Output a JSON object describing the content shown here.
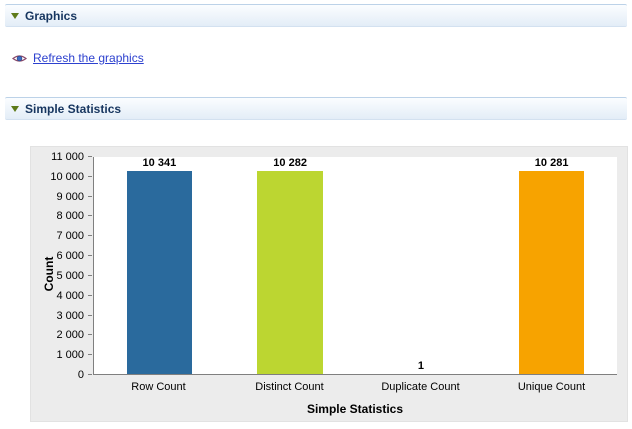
{
  "sections": {
    "graphics": {
      "title": "Graphics"
    },
    "simple_statistics": {
      "title": "Simple Statistics"
    }
  },
  "actions": {
    "refresh_link": "Refresh the graphics"
  },
  "colors": {
    "row_count_bar": "#2a6a9d",
    "distinct_count_bar": "#bcd631",
    "duplicate_count_bar": "#bcd631",
    "unique_count_bar": "#f7a300",
    "link": "#2d41cf"
  },
  "chart_data": {
    "type": "bar",
    "title": "",
    "categories": [
      "Row Count",
      "Distinct Count",
      "Duplicate Count",
      "Unique Count"
    ],
    "values": [
      10341,
      10282,
      1,
      10281
    ],
    "value_labels": [
      "10 341",
      "10 282",
      "1",
      "10 281"
    ],
    "bar_colors": [
      "#2a6a9d",
      "#bcd631",
      "#bcd631",
      "#f7a300"
    ],
    "xlabel": "Simple Statistics",
    "ylabel": "Count",
    "ylim": [
      0,
      11000
    ],
    "yticks": [
      0,
      1000,
      2000,
      3000,
      4000,
      5000,
      6000,
      7000,
      8000,
      9000,
      10000,
      11000
    ],
    "ytick_labels": [
      "0",
      "1 000",
      "2 000",
      "3 000",
      "4 000",
      "5 000",
      "6 000",
      "7 000",
      "8 000",
      "9 000",
      "10 000",
      "11 000"
    ],
    "grid": false,
    "legend": "none"
  }
}
